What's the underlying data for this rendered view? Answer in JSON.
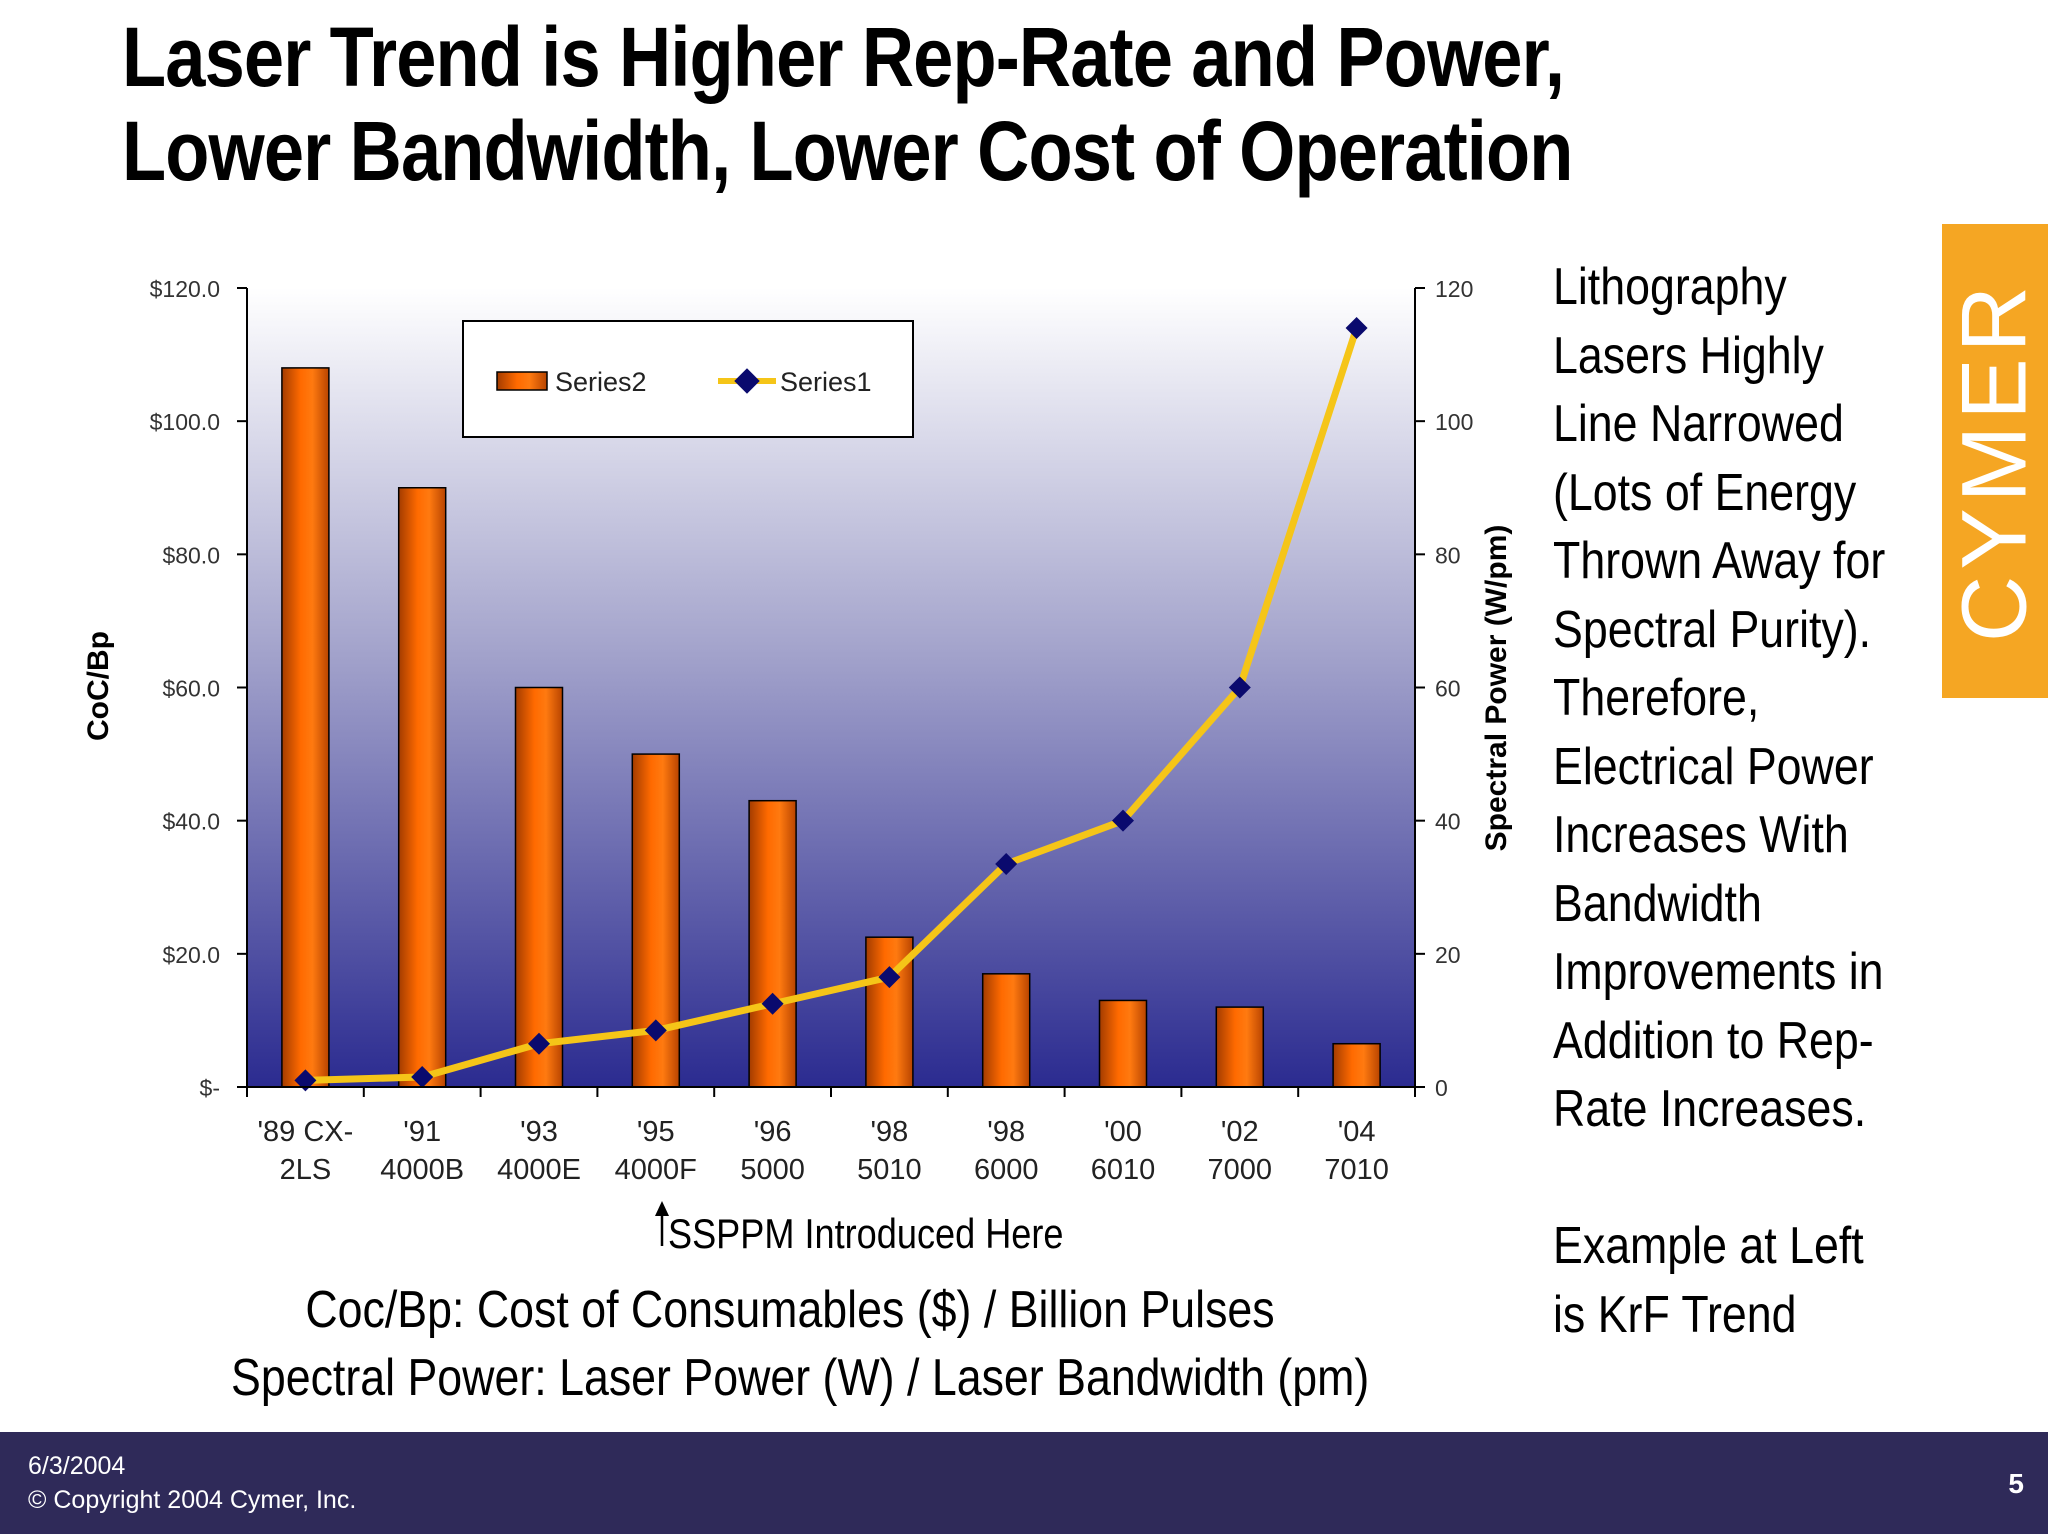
{
  "slide": {
    "title_line1": "Laser Trend is Higher Rep-Rate and Power,",
    "title_line2": "Lower Bandwidth, Lower Cost of Operation"
  },
  "side_text": {
    "lines": [
      "Lithography",
      "Lasers Highly",
      "Line Narrowed",
      "(Lots of Energy",
      "Thrown Away for",
      "Spectral Purity).",
      "Therefore,",
      "Electrical Power",
      "Increases With",
      "Bandwidth",
      "Improvements in",
      "Addition to Rep-",
      "Rate Increases."
    ],
    "example_lines": [
      "Example at Left",
      "is KrF Trend"
    ]
  },
  "annotation": "SSPPM Introduced Here",
  "captions": {
    "line1": "Coc/Bp: Cost of Consumables ($) / Billion Pulses",
    "line2": "Spectral Power: Laser Power (W) / Laser Bandwidth (pm)"
  },
  "logo": {
    "text": "CYMER",
    "color": "#f5a623"
  },
  "footer": {
    "date": "6/3/2004",
    "copyright": "© Copyright 2004 Cymer, Inc.",
    "page": "5",
    "background": "#2f2a59"
  },
  "chart_data": {
    "type": "bar",
    "categories": [
      [
        "'89 CX-",
        "2LS"
      ],
      [
        "'91",
        "4000B"
      ],
      [
        "'93",
        "4000E"
      ],
      [
        "'95",
        "4000F"
      ],
      [
        "'96",
        "5000"
      ],
      [
        "'98",
        "5010"
      ],
      [
        "'98",
        "6000"
      ],
      [
        "'00",
        "6010"
      ],
      [
        "'02",
        "7000"
      ],
      [
        "'04",
        "7010"
      ]
    ],
    "series": [
      {
        "name": "Series2",
        "type": "bar",
        "axis": "left",
        "color": "#ff6a00",
        "values": [
          108,
          90,
          60,
          50,
          43,
          22.5,
          17,
          13,
          12,
          6.5
        ]
      },
      {
        "name": "Series1",
        "type": "line",
        "axis": "right",
        "color": "#f5c518",
        "marker_color": "#0a0a6e",
        "values": [
          1,
          1.5,
          6.5,
          8.5,
          12.5,
          16.5,
          33.5,
          40,
          60,
          114
        ]
      }
    ],
    "ylabel": "CoC/Bp",
    "y2label": "Spectral Power (W/pm)",
    "ylim": [
      0,
      120
    ],
    "y2lim": [
      0,
      120
    ],
    "yticks": [
      0,
      20,
      40,
      60,
      80,
      100,
      120
    ],
    "ytick_labels": [
      "$-",
      "$20.0",
      "$40.0",
      "$60.0",
      "$80.0",
      "$100.0",
      "$120.0"
    ],
    "y2ticks": [
      0,
      20,
      40,
      60,
      80,
      100,
      120
    ],
    "y2tick_labels": [
      "0",
      "20",
      "40",
      "60",
      "80",
      "100",
      "120"
    ],
    "legend_position": "top-center",
    "plot_background": {
      "top": "#ffffff",
      "bottom": "#2b2b90"
    },
    "grid": false
  }
}
